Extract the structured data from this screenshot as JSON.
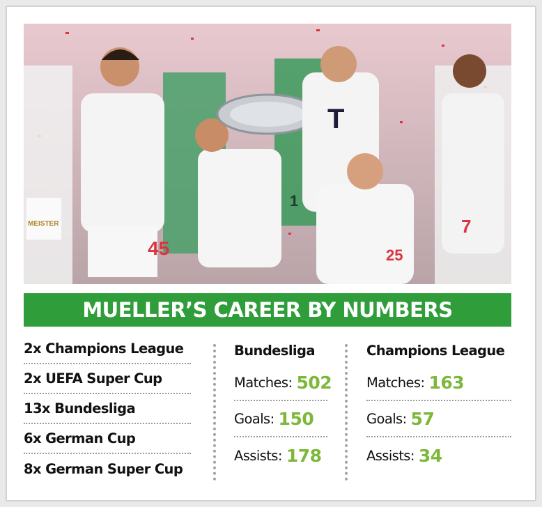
{
  "banner": {
    "title": "MUELLER’S CAREER BY NUMBERS"
  },
  "photo": {
    "jersey_numbers": [
      "45",
      "7",
      "1",
      "25"
    ],
    "sponsor_letter": "T",
    "banner_text": "MEISTER"
  },
  "honours": [
    "2x Champions League",
    "2x UEFA Super Cup",
    "13x Bundesliga",
    "6x German Cup",
    "8x German Super Cup"
  ],
  "stats": [
    {
      "title": "Bundesliga",
      "rows": [
        {
          "label": "Matches:",
          "value": "502"
        },
        {
          "label": "Goals:",
          "value": "150"
        },
        {
          "label": "Assists:",
          "value": "178"
        }
      ]
    },
    {
      "title": "Champions League",
      "rows": [
        {
          "label": "Matches:",
          "value": "163"
        },
        {
          "label": "Goals:",
          "value": "57"
        },
        {
          "label": "Assists:",
          "value": "34"
        }
      ]
    }
  ],
  "colors": {
    "banner_green": "#2f9e3a",
    "value_green": "#7db83a"
  }
}
